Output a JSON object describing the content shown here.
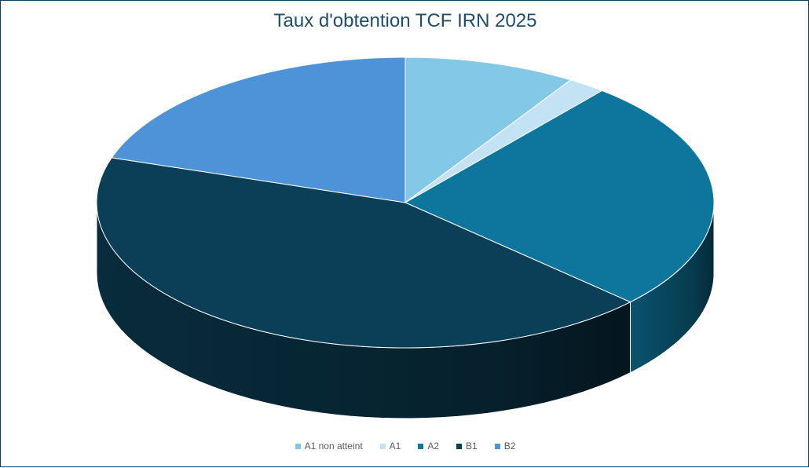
{
  "chart_data": {
    "type": "pie",
    "title": "Taux d'obtention TCF IRN 2025",
    "categories": [
      "A1 non atteint",
      "A1",
      "A2",
      "B1",
      "B2"
    ],
    "values": [
      9,
      2,
      26,
      43,
      20
    ],
    "colors": [
      "#83c8e7",
      "#c3e2f3",
      "#0e769d",
      "#0b3f57",
      "#4e93d8"
    ],
    "style": "3d",
    "legend_position": "bottom"
  }
}
